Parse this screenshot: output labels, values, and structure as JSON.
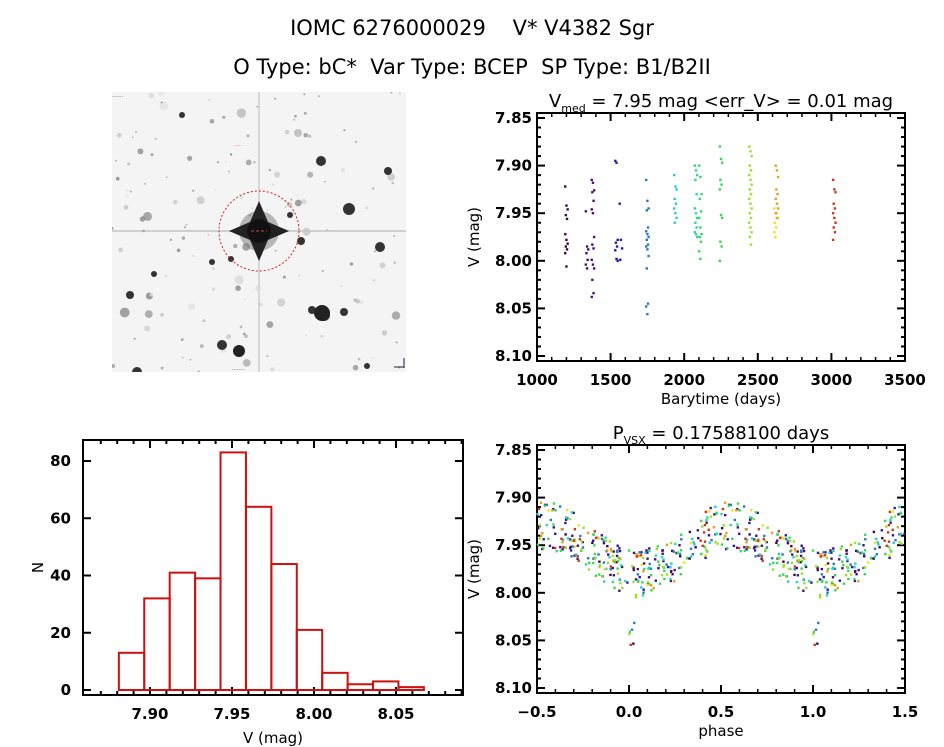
{
  "header": {
    "line1_id": "IOMC 6276000029",
    "line1_name": "V* V4382 Sgr",
    "otype_label": "O Type: bC*",
    "vartype_label": "Var Type: BCEP",
    "sptype_label": "SP Type: B1/B2II"
  },
  "finder_chart": {
    "description": "DSS image of field around target with red circle marking target",
    "marker_color": "#cc2222"
  },
  "chart_data": [
    {
      "id": "light-curve",
      "type": "scatter",
      "title_main": "V",
      "title_sub": "med",
      "title_rest": " = 7.95 mag <err_V> = 0.01 mag",
      "xlabel": "Barytime (days)",
      "ylabel": "V (mag)",
      "xlim": [
        1000,
        3500
      ],
      "ylim": [
        8.1,
        7.85
      ],
      "y_inverted": true,
      "xticks": [
        1000,
        1500,
        2000,
        2500,
        3000,
        3500
      ],
      "xtick_labels": [
        "1000",
        "1500",
        "2000",
        "2500",
        "3000",
        "3500"
      ],
      "yticks": [
        7.85,
        7.9,
        7.95,
        8.0,
        8.05,
        8.1
      ],
      "ytick_labels": [
        "7.85",
        "7.90",
        "7.95",
        "8.00",
        "8.05",
        "8.10"
      ],
      "groups": [
        {
          "x": 1200,
          "color": "#3a0a4a",
          "values": [
            7.922,
            7.942,
            7.946,
            7.952,
            7.956,
            7.972,
            7.978,
            7.982,
            7.985,
            7.988,
            7.992,
            8.006
          ]
        },
        {
          "x": 1340,
          "color": "#4a1070",
          "values": [
            7.948,
            7.985,
            7.988,
            7.992,
            7.999,
            8.004,
            8.008
          ]
        },
        {
          "x": 1380,
          "color": "#4a1070",
          "values": [
            7.915,
            7.918,
            7.926,
            7.928,
            7.937,
            7.946,
            7.95,
            7.975,
            7.983,
            7.987,
            7.999,
            8.004,
            8.008,
            8.02,
            8.034,
            8.038
          ]
        },
        {
          "x": 1540,
          "color": "#2a1a9a",
          "values": [
            7.895,
            7.897,
            7.978,
            7.981,
            7.985,
            7.989,
            7.998,
            8.0
          ]
        },
        {
          "x": 1570,
          "color": "#2a1a9a",
          "values": [
            7.94,
            7.978,
            7.987,
            7.999
          ]
        },
        {
          "x": 1750,
          "color": "#2a78c8",
          "values": [
            7.915,
            7.937,
            7.945,
            7.947,
            7.965,
            7.969,
            7.972,
            7.975,
            7.978,
            7.983,
            7.985,
            7.988,
            7.995,
            8.008,
            8.045,
            8.048,
            8.056
          ]
        },
        {
          "x": 1940,
          "color": "#2ac8d8",
          "values": [
            7.91,
            7.922,
            7.925,
            7.935,
            7.94,
            7.945,
            7.95,
            7.955,
            7.96
          ]
        },
        {
          "x": 2080,
          "color": "#2ad8a0",
          "values": [
            7.9,
            7.905,
            7.91,
            7.915,
            7.93,
            7.945,
            7.95,
            7.955,
            7.96,
            7.965,
            7.97,
            7.972,
            7.975
          ]
        },
        {
          "x": 2110,
          "color": "#3ad85a",
          "values": [
            7.9,
            7.912,
            7.93,
            7.935,
            7.948,
            7.955,
            7.965,
            7.972,
            7.975,
            7.98,
            7.99,
            7.998
          ]
        },
        {
          "x": 2250,
          "color": "#3ad84a",
          "values": [
            7.88,
            7.893,
            7.897,
            7.915,
            7.92,
            7.925,
            7.952,
            7.955,
            7.98,
            7.985,
            8.0
          ]
        },
        {
          "x": 2450,
          "color": "#9ae02a",
          "values": [
            7.88,
            7.885,
            7.89,
            7.9,
            7.905,
            7.91,
            7.915,
            7.92,
            7.925,
            7.93,
            7.935,
            7.94,
            7.945,
            7.95,
            7.955,
            7.96,
            7.965,
            7.97,
            7.975,
            7.983
          ]
        },
        {
          "x": 2620,
          "color": "#f0e020",
          "values": [
            7.945,
            7.95,
            7.955,
            7.96,
            7.965,
            7.97,
            7.975
          ]
        },
        {
          "x": 2630,
          "color": "#e0a020",
          "values": [
            7.9,
            7.905,
            7.912,
            7.925,
            7.93,
            7.935,
            7.94,
            7.945,
            7.95,
            7.955
          ]
        },
        {
          "x": 3020,
          "color": "#c83a1a",
          "values": [
            7.915,
            7.925,
            7.928,
            7.94,
            7.945,
            7.95,
            7.955,
            7.96,
            7.965,
            7.97,
            7.978
          ]
        }
      ]
    },
    {
      "id": "histogram",
      "type": "bar",
      "title": "",
      "xlabel": "V (mag)",
      "ylabel": "N",
      "xlim": [
        7.865,
        8.09
      ],
      "ylim": [
        0,
        87
      ],
      "xticks": [
        7.9,
        7.95,
        8.0,
        8.05
      ],
      "xtick_labels": [
        "7.90",
        "7.95",
        "8.00",
        "8.05"
      ],
      "yticks": [
        0,
        20,
        40,
        60,
        80
      ],
      "ytick_labels": [
        "0",
        "20",
        "40",
        "60",
        "80"
      ],
      "bin_start": 7.881,
      "bin_width": 0.0155,
      "values": [
        13,
        32,
        41,
        39,
        83,
        64,
        44,
        21,
        6,
        2,
        3,
        1
      ],
      "bar_color": "#cc1111"
    },
    {
      "id": "phase-curve",
      "type": "scatter",
      "title_main": "P",
      "title_sub": "VSX",
      "title_rest": " = 0.17588100 days",
      "xlabel": "phase",
      "ylabel": "V (mag)",
      "xlim": [
        -0.5,
        1.5
      ],
      "ylim": [
        8.1,
        7.85
      ],
      "y_inverted": true,
      "xticks": [
        -0.5,
        0.0,
        0.5,
        1.0,
        1.5
      ],
      "xtick_labels": [
        "−0.5",
        "0.0",
        "0.5",
        "1.0",
        "1.5"
      ],
      "yticks": [
        7.85,
        7.9,
        7.95,
        8.0,
        8.05,
        8.1
      ],
      "ytick_labels": [
        "7.85",
        "7.90",
        "7.95",
        "8.00",
        "8.05",
        "8.10"
      ],
      "period_days": 0.175881,
      "note": "phase-folded points repeated with +1 offset; colors follow time groups of light curve"
    }
  ]
}
